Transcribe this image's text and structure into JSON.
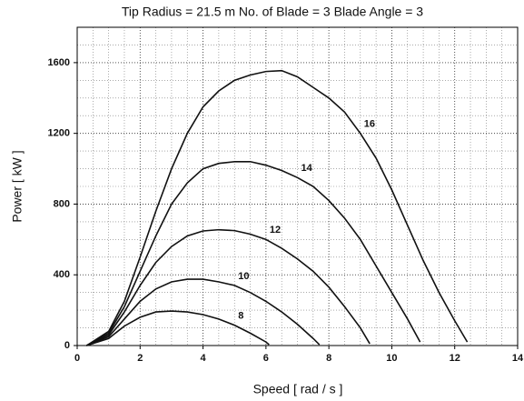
{
  "chart_data": {
    "type": "line",
    "title": "Tip Radius = 21.5 m  No. of Blade = 3  Blade Angle = 3",
    "x_label": "Speed [ rad / s ]",
    "y_label": "Power [ kW ]",
    "xlim": [
      0,
      14
    ],
    "xticks": [
      0,
      2,
      4,
      6,
      8,
      10,
      12,
      14
    ],
    "ylim": [
      0,
      1800
    ],
    "yticks": [
      0,
      400,
      800,
      1200,
      1600
    ],
    "grid": true,
    "series": [
      {
        "name": "8",
        "color": "#111111",
        "x": [
          0.3,
          1,
          1.5,
          2,
          2.5,
          3,
          3.5,
          4,
          4.5,
          5,
          5.5,
          6,
          6.1
        ],
        "values": [
          0,
          40,
          110,
          160,
          190,
          195,
          190,
          175,
          150,
          115,
          70,
          20,
          5
        ]
      },
      {
        "name": "10",
        "color": "#111111",
        "x": [
          0.3,
          1,
          1.5,
          2,
          2.5,
          3,
          3.5,
          4,
          4.5,
          5,
          5.5,
          6,
          6.5,
          7,
          7.5,
          7.7
        ],
        "values": [
          0,
          50,
          150,
          250,
          320,
          360,
          375,
          375,
          360,
          340,
          300,
          250,
          190,
          120,
          40,
          5
        ]
      },
      {
        "name": "12",
        "color": "#111111",
        "x": [
          0.3,
          1,
          1.5,
          2,
          2.5,
          3,
          3.5,
          4,
          4.5,
          5,
          5.5,
          6,
          6.5,
          7,
          7.5,
          8,
          8.5,
          9,
          9.3
        ],
        "values": [
          0,
          60,
          190,
          340,
          470,
          560,
          620,
          648,
          655,
          650,
          630,
          600,
          550,
          490,
          420,
          330,
          220,
          100,
          10
        ]
      },
      {
        "name": "14",
        "color": "#111111",
        "x": [
          0.3,
          1,
          1.5,
          2,
          2.5,
          3,
          3.5,
          4,
          4.5,
          5,
          5.5,
          6,
          6.5,
          7,
          7.5,
          8,
          8.5,
          9,
          9.5,
          10,
          10.5,
          10.9
        ],
        "values": [
          0,
          70,
          220,
          420,
          620,
          800,
          920,
          1000,
          1030,
          1040,
          1040,
          1020,
          990,
          950,
          900,
          820,
          720,
          600,
          450,
          300,
          150,
          20
        ]
      },
      {
        "name": "16",
        "color": "#111111",
        "x": [
          0.3,
          1,
          1.5,
          2,
          2.5,
          3,
          3.5,
          4,
          4.5,
          5,
          5.5,
          6,
          6.5,
          7,
          7.5,
          8,
          8.5,
          9,
          9.5,
          10,
          10.5,
          11,
          11.5,
          12,
          12.4
        ],
        "values": [
          0,
          80,
          250,
          500,
          760,
          1000,
          1200,
          1350,
          1440,
          1500,
          1530,
          1550,
          1555,
          1520,
          1460,
          1400,
          1320,
          1200,
          1060,
          880,
          680,
          480,
          300,
          140,
          20
        ]
      }
    ]
  }
}
